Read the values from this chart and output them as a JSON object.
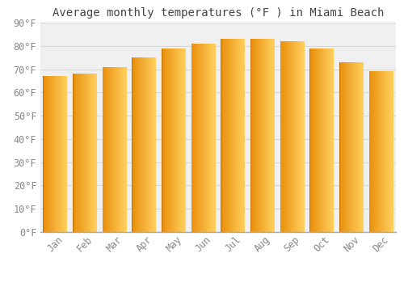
{
  "title": "Average monthly temperatures (°F ) in Miami Beach",
  "months": [
    "Jan",
    "Feb",
    "Mar",
    "Apr",
    "May",
    "Jun",
    "Jul",
    "Aug",
    "Sep",
    "Oct",
    "Nov",
    "Dec"
  ],
  "values": [
    67,
    68,
    71,
    75,
    79,
    81,
    83,
    83,
    82,
    79,
    73,
    69
  ],
  "bar_color_left": "#E8900A",
  "bar_color_right": "#FFD060",
  "background_color": "#ffffff",
  "plot_bg_color": "#f0f0f0",
  "ylim": [
    0,
    90
  ],
  "ytick_step": 10,
  "title_fontsize": 10,
  "tick_fontsize": 8.5,
  "grid_color": "#d8d8d8",
  "bar_width": 0.82
}
